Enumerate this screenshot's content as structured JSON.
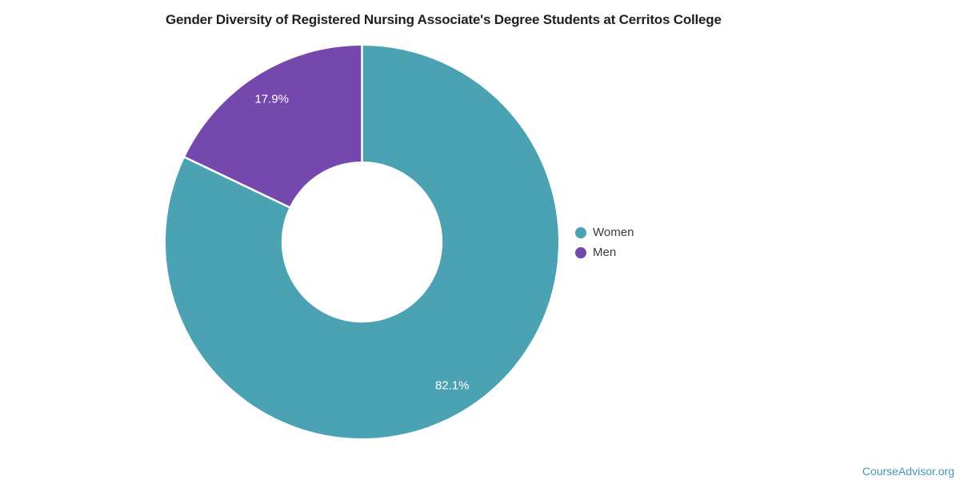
{
  "chart_data": {
    "type": "pie",
    "title": "Gender Diversity of Registered Nursing Associate's Degree Students at Cerritos College",
    "labels": [
      "Women",
      "Men"
    ],
    "values": [
      82.1,
      17.9
    ],
    "value_labels": [
      "82.1%",
      "17.9%"
    ],
    "colors": [
      "#4AA2B2",
      "#7448AD"
    ],
    "donut": true,
    "inner_radius_ratio": 0.41,
    "start_angle_deg": 0,
    "direction": "clockwise",
    "legend_position": "right",
    "slice_divider_color": "#FFFFFF",
    "slice_label_color": "#FFFFFF"
  },
  "branding": {
    "label": "CourseAdvisor.org",
    "color": "#4596BB"
  }
}
